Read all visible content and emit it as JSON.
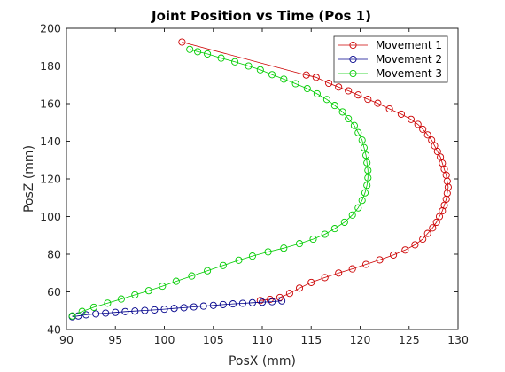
{
  "chart_data": {
    "type": "line",
    "title": "Joint Position vs Time (Pos 1)",
    "xlabel": "PosX (mm)",
    "ylabel": "PosZ (mm)",
    "xlim": [
      90,
      130
    ],
    "ylim": [
      40,
      200
    ],
    "xticks": [
      90,
      95,
      100,
      105,
      110,
      115,
      120,
      125,
      130
    ],
    "yticks": [
      40,
      60,
      80,
      100,
      120,
      140,
      160,
      180,
      200
    ],
    "grid": false,
    "legend_position": "top-right",
    "marker": "circle",
    "series": [
      {
        "name": "Movement 1",
        "color": "#cc0000",
        "points": [
          [
            101.8,
            192.7
          ],
          [
            114.5,
            175.2
          ],
          [
            115.5,
            174.0
          ],
          [
            116.8,
            170.8
          ],
          [
            117.8,
            168.8
          ],
          [
            118.8,
            166.8
          ],
          [
            119.8,
            164.6
          ],
          [
            120.8,
            162.3
          ],
          [
            121.8,
            160.2
          ],
          [
            123.0,
            157.2
          ],
          [
            124.2,
            154.4
          ],
          [
            125.2,
            151.6
          ],
          [
            125.9,
            149.0
          ],
          [
            126.4,
            146.4
          ],
          [
            126.9,
            143.4
          ],
          [
            127.3,
            140.6
          ],
          [
            127.6,
            137.6
          ],
          [
            127.9,
            134.6
          ],
          [
            128.2,
            131.6
          ],
          [
            128.4,
            128.4
          ],
          [
            128.6,
            125.2
          ],
          [
            128.8,
            122.0
          ],
          [
            128.9,
            118.8
          ],
          [
            129.0,
            115.6
          ],
          [
            128.9,
            112.4
          ],
          [
            128.8,
            109.2
          ],
          [
            128.6,
            106.0
          ],
          [
            128.4,
            103.0
          ],
          [
            128.1,
            100.0
          ],
          [
            127.8,
            97.0
          ],
          [
            127.4,
            94.0
          ],
          [
            126.9,
            91.0
          ],
          [
            126.4,
            88.0
          ],
          [
            125.6,
            85.0
          ],
          [
            124.6,
            82.2
          ],
          [
            123.4,
            79.6
          ],
          [
            122.0,
            77.0
          ],
          [
            120.6,
            74.6
          ],
          [
            119.2,
            72.2
          ],
          [
            117.8,
            70.0
          ],
          [
            116.4,
            67.6
          ],
          [
            115.0,
            65.0
          ],
          [
            113.8,
            62.0
          ],
          [
            112.8,
            59.2
          ],
          [
            111.8,
            57.0
          ],
          [
            110.8,
            56.0
          ],
          [
            109.8,
            55.4
          ]
        ]
      },
      {
        "name": "Movement 2",
        "color": "#00008b",
        "points": [
          [
            112.0,
            55.2
          ],
          [
            111.0,
            54.8
          ],
          [
            110.0,
            54.5
          ],
          [
            109.0,
            54.2
          ],
          [
            108.0,
            53.9
          ],
          [
            107.0,
            53.6
          ],
          [
            106.0,
            53.2
          ],
          [
            105.0,
            52.8
          ],
          [
            104.0,
            52.4
          ],
          [
            103.0,
            52.0
          ],
          [
            102.0,
            51.6
          ],
          [
            101.0,
            51.2
          ],
          [
            100.0,
            50.8
          ],
          [
            99.0,
            50.4
          ],
          [
            98.0,
            50.1
          ],
          [
            97.0,
            49.8
          ],
          [
            96.0,
            49.5
          ],
          [
            95.0,
            49.1
          ],
          [
            94.0,
            48.7
          ],
          [
            93.0,
            48.3
          ],
          [
            92.0,
            47.8
          ],
          [
            91.2,
            47.2
          ],
          [
            90.6,
            46.8
          ]
        ]
      },
      {
        "name": "Movement 3",
        "color": "#00cc00",
        "points": [
          [
            102.6,
            188.8
          ],
          [
            103.4,
            187.6
          ],
          [
            104.4,
            186.4
          ],
          [
            105.8,
            184.2
          ],
          [
            107.2,
            182.2
          ],
          [
            108.6,
            180.0
          ],
          [
            109.8,
            178.0
          ],
          [
            111.0,
            175.4
          ],
          [
            112.2,
            173.0
          ],
          [
            113.4,
            170.6
          ],
          [
            114.6,
            168.0
          ],
          [
            115.6,
            165.2
          ],
          [
            116.6,
            162.2
          ],
          [
            117.4,
            159.0
          ],
          [
            118.2,
            155.6
          ],
          [
            118.8,
            152.0
          ],
          [
            119.4,
            148.4
          ],
          [
            119.8,
            144.6
          ],
          [
            120.2,
            140.6
          ],
          [
            120.4,
            136.6
          ],
          [
            120.6,
            132.6
          ],
          [
            120.7,
            128.6
          ],
          [
            120.8,
            124.6
          ],
          [
            120.8,
            120.6
          ],
          [
            120.7,
            116.6
          ],
          [
            120.5,
            112.6
          ],
          [
            120.2,
            108.6
          ],
          [
            119.8,
            104.6
          ],
          [
            119.2,
            100.8
          ],
          [
            118.4,
            97.0
          ],
          [
            117.4,
            93.6
          ],
          [
            116.4,
            90.6
          ],
          [
            115.2,
            88.0
          ],
          [
            113.8,
            85.6
          ],
          [
            112.2,
            83.2
          ],
          [
            110.6,
            81.2
          ],
          [
            109.0,
            79.0
          ],
          [
            107.6,
            76.8
          ],
          [
            106.0,
            74.0
          ],
          [
            104.4,
            71.2
          ],
          [
            102.8,
            68.4
          ],
          [
            101.2,
            65.6
          ],
          [
            99.8,
            63.0
          ],
          [
            98.4,
            60.6
          ],
          [
            97.0,
            58.4
          ],
          [
            95.6,
            56.2
          ],
          [
            94.2,
            54.0
          ],
          [
            92.8,
            51.8
          ],
          [
            91.6,
            49.6
          ],
          [
            90.6,
            47.2
          ]
        ]
      }
    ]
  }
}
